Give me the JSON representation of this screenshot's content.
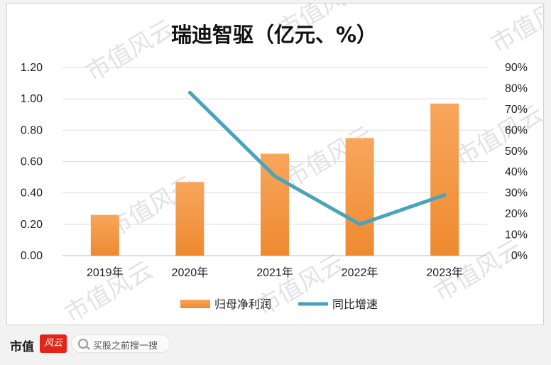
{
  "chart_data": {
    "type": "bar+line",
    "title": "瑞迪智驱（亿元、%）",
    "categories": [
      "2019年",
      "2020年",
      "2021年",
      "2022年",
      "2023年"
    ],
    "series": [
      {
        "name": "归母净利润",
        "type": "bar",
        "axis": "left",
        "color": "#f59a4a",
        "values": [
          0.26,
          0.47,
          0.65,
          0.75,
          0.97
        ]
      },
      {
        "name": "同比增速",
        "type": "line",
        "axis": "right",
        "color": "#4aa3bd",
        "values": [
          null,
          78,
          38,
          15,
          29
        ]
      }
    ],
    "left_axis": {
      "ticks": [
        "0.00",
        "0.20",
        "0.40",
        "0.60",
        "0.80",
        "1.00",
        "1.20"
      ],
      "ylim": [
        0,
        1.2
      ]
    },
    "right_axis": {
      "ticks": [
        "0%",
        "10%",
        "20%",
        "30%",
        "40%",
        "50%",
        "60%",
        "70%",
        "80%",
        "90%"
      ],
      "ylim": [
        0,
        90
      ]
    },
    "grid": true,
    "legend_position": "bottom"
  },
  "watermark": "市值风云",
  "footer": {
    "brand": "市值",
    "badge": "风云",
    "search_placeholder": "买股之前搜一搜"
  }
}
